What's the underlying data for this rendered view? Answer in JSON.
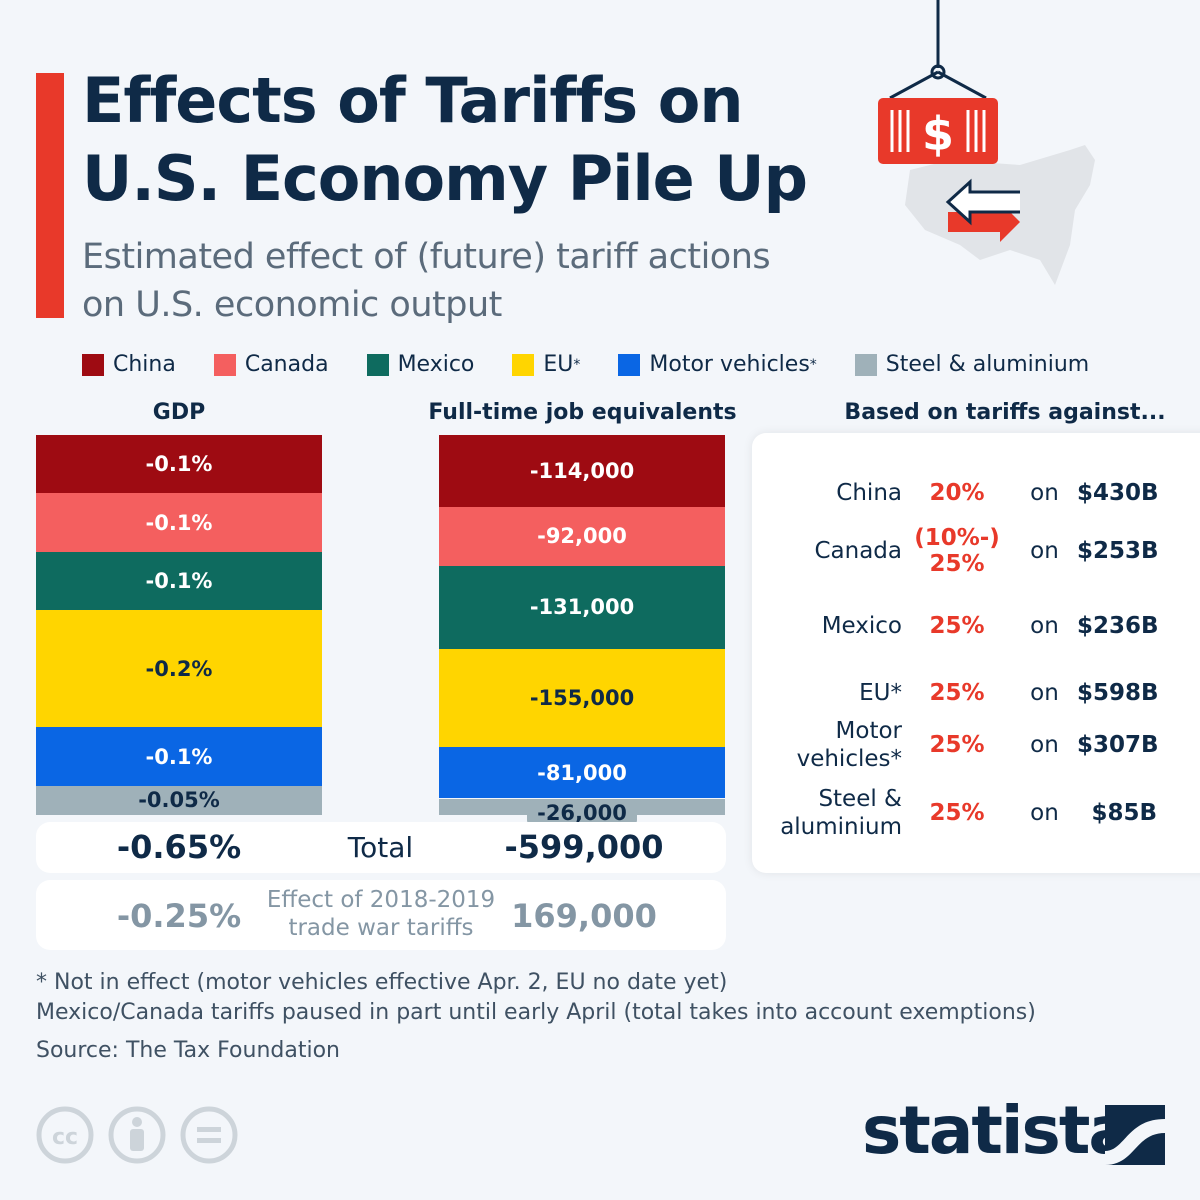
{
  "title": "Effects of Tariffs on U.S. Economy Pile Up",
  "title_lines": [
    "Effects of Tariffs on",
    "U.S. Economy Pile Up"
  ],
  "subtitle_lines": [
    "Estimated effect of (future) tariff actions",
    "on U.S. economic output"
  ],
  "colors": {
    "accent": "#e8392a",
    "navy": "#0f2a47"
  },
  "chart_data": {
    "type": "bar",
    "stacked": true,
    "categories": [
      "China",
      "Canada",
      "Mexico",
      "EU*",
      "Motor vehicles*",
      "Steel & aluminium"
    ],
    "colors": [
      "#9e0b12",
      "#f45f5f",
      "#0e6b5f",
      "#ffd500",
      "#0a66e4",
      "#9fb1b9"
    ],
    "legend_position": "top",
    "series": [
      {
        "name": "GDP",
        "values": [
          -0.1,
          -0.1,
          -0.1,
          -0.2,
          -0.1,
          -0.05
        ],
        "labels": [
          "-0.1%",
          "-0.1%",
          "-0.1%",
          "-0.2%",
          "-0.1%",
          "-0.05%"
        ],
        "total": -0.65
      },
      {
        "name": "Full-time job equivalents",
        "values": [
          -114000,
          -92000,
          -131000,
          -155000,
          -81000,
          -26000
        ],
        "labels": [
          "-114,000",
          "-92,000",
          "-131,000",
          "-155,000",
          "-81,000",
          "-26,000"
        ],
        "total": -599000
      }
    ]
  },
  "legend": [
    "China",
    "Canada",
    "Mexico",
    "EU",
    "Motor vehicles",
    "Steel & aluminium"
  ],
  "legend_star": "*",
  "headers": {
    "gdp": "GDP",
    "jobs": "Full-time job equivalents",
    "based": "Based on tariffs against..."
  },
  "tariffs": [
    {
      "name": "China",
      "rate": "20%",
      "on": "on",
      "value": "$430B"
    },
    {
      "name": "Canada",
      "rate": "(10%-) 25%",
      "rate_lines": [
        "(10%-)",
        "25%"
      ],
      "on": "on",
      "value": "$253B"
    },
    {
      "name": "Mexico",
      "rate": "25%",
      "on": "on",
      "value": "$236B"
    },
    {
      "name": "EU*",
      "rate": "25%",
      "on": "on",
      "value": "$598B"
    },
    {
      "name": "Motor vehicles*",
      "name_lines": [
        "Motor",
        "vehicles*"
      ],
      "rate": "25%",
      "on": "on",
      "value": "$307B"
    },
    {
      "name": "Steel & aluminium",
      "name_lines": [
        "Steel &",
        "aluminium"
      ],
      "rate": "25%",
      "on": "on",
      "value": "$85B"
    }
  ],
  "total": {
    "gdp": "-0.65%",
    "label": "Total",
    "jobs": "-599,000"
  },
  "trade_war": {
    "gdp": "-0.25%",
    "label_lines": [
      "Effect of 2018-2019",
      "trade war tariffs"
    ],
    "jobs": "169,000"
  },
  "notes": [
    "* Not in effect (motor vehicles effective Apr. 2, EU no date yet)",
    "Mexico/Canada tariffs paused in part until early April (total takes into account exemptions)",
    "Source: The Tax Foundation"
  ],
  "brand": "statista"
}
